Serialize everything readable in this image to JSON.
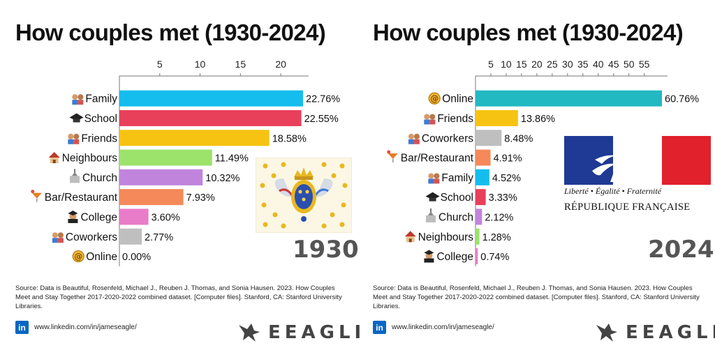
{
  "colors": {
    "family": "#14bdee",
    "school": "#e8405b",
    "friends": "#f7c313",
    "neighbours": "#9be36a",
    "church": "#c184dd",
    "bar": "#f5895a",
    "college": "#e97cc9",
    "coworkers": "#bfbfbf",
    "online_left": "#14bdee",
    "online_right": "#22b9c3",
    "family_right": "#14bdee",
    "school_right": "#e8405b",
    "bar_right": "#f5895a",
    "church_right": "#c184dd",
    "neighbours_right": "#9be36a",
    "college_right": "#e97cc9",
    "coworkers_right": "#bfbfbf",
    "friends_right": "#f7c313",
    "linkedin": "#0a66c2"
  },
  "icons": {
    "family": "family-icon",
    "school": "graduation-cap-icon",
    "friends": "friends-icon",
    "neighbours": "house-icon",
    "church": "church-icon",
    "bar": "cocktail-icon",
    "college": "graduate-icon",
    "coworkers": "coworkers-icon",
    "online": "at-sign-icon"
  },
  "left": {
    "title": "How couples met (1930-2024)",
    "year": "1930",
    "source": "Source: Data is Beautiful, Rosenfeld, Michael J., Reuben J. Thomas, and Sonia Hausen. 2023. How Couples Meet and Stay Together 2017-2020-2022 combined dataset. [Computer files]. Stanford, CA: Stanford University Libraries.",
    "linkedin_label": "in",
    "url": "www.linkedin.com/in/jameseagle/",
    "brand": "EEAGLI"
  },
  "right": {
    "title": "How couples met (1930-2024)",
    "year": "2024",
    "source": "Source: Data is Beautiful, Rosenfeld, Michael J., Reuben J. Thomas, and Sonia Hausen. 2023. How Couples Meet and Stay Together 2017-2020-2022 combined dataset. [Computer files]. Stanford, CA: Stanford University Libraries.",
    "linkedin_label": "in",
    "url": "www.linkedin.com/in/jameseagle/",
    "brand": "EEAGLI",
    "motto": "Liberté • Égalité • Fraternité",
    "republic": "RÉPUBLIQUE FRANÇAISE"
  },
  "chart_data": [
    {
      "type": "bar",
      "orientation": "horizontal",
      "title": "How couples met (1930-2024)",
      "categories": [
        "Family",
        "School",
        "Friends",
        "Neighbours",
        "Church",
        "Bar/Restaurant",
        "College",
        "Coworkers",
        "Online"
      ],
      "values": [
        22.76,
        22.55,
        18.58,
        11.49,
        10.32,
        7.93,
        3.6,
        2.77,
        0.0
      ],
      "value_labels": [
        "22.76%",
        "22.55%",
        "18.58%",
        "11.49%",
        "10.32%",
        "7.93%",
        "3.60%",
        "2.77%",
        "0.00%"
      ],
      "color_keys": [
        "family",
        "school",
        "friends",
        "neighbours",
        "church",
        "bar",
        "college",
        "coworkers",
        "online_left"
      ],
      "icon_keys": [
        "family",
        "school",
        "friends",
        "neighbours",
        "church",
        "bar",
        "college",
        "coworkers",
        "online"
      ],
      "xticks": [
        5,
        10,
        15,
        20
      ],
      "xlim": [
        0,
        22.76
      ],
      "axis_position": "top",
      "grid": false
    },
    {
      "type": "bar",
      "orientation": "horizontal",
      "title": "How couples met (1930-2024)",
      "categories": [
        "Online",
        "Friends",
        "Coworkers",
        "Bar/Restaurant",
        "Family",
        "School",
        "Church",
        "Neighbours",
        "College"
      ],
      "values": [
        60.76,
        13.86,
        8.48,
        4.91,
        4.52,
        3.33,
        2.12,
        1.28,
        0.74
      ],
      "value_labels": [
        "60.76%",
        "13.86%",
        "8.48%",
        "4.91%",
        "4.52%",
        "3.33%",
        "2.12%",
        "1.28%",
        "0.74%"
      ],
      "color_keys": [
        "online_right",
        "friends_right",
        "coworkers_right",
        "bar_right",
        "family_right",
        "school_right",
        "church_right",
        "neighbours_right",
        "college_right"
      ],
      "icon_keys": [
        "online",
        "friends",
        "coworkers",
        "bar",
        "family",
        "school",
        "church",
        "neighbours",
        "college"
      ],
      "xticks": [
        5,
        10,
        15,
        20,
        25,
        30,
        35,
        40,
        45,
        50,
        55
      ],
      "xlim": [
        0,
        60.76
      ],
      "axis_position": "top",
      "grid": false
    }
  ]
}
